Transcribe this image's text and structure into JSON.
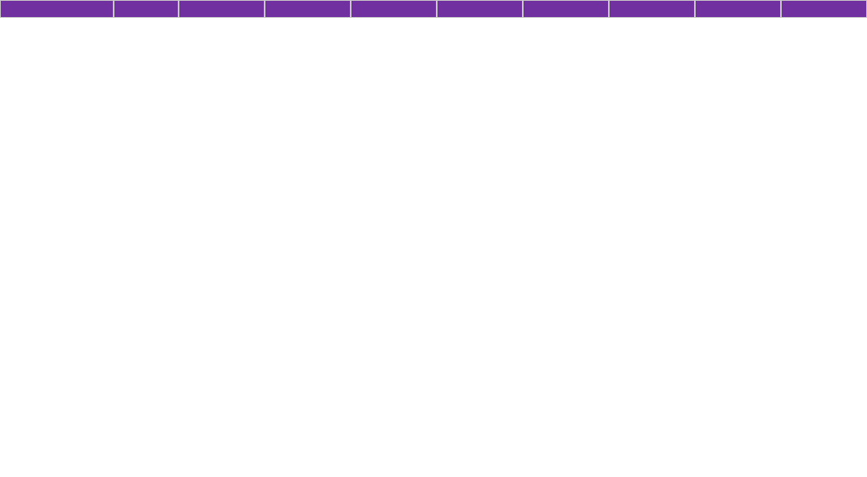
{
  "sheet": {
    "header": [
      "",
      "",
      "",
      "",
      "",
      "",
      "",
      "",
      "",
      ""
    ],
    "rows": []
  }
}
